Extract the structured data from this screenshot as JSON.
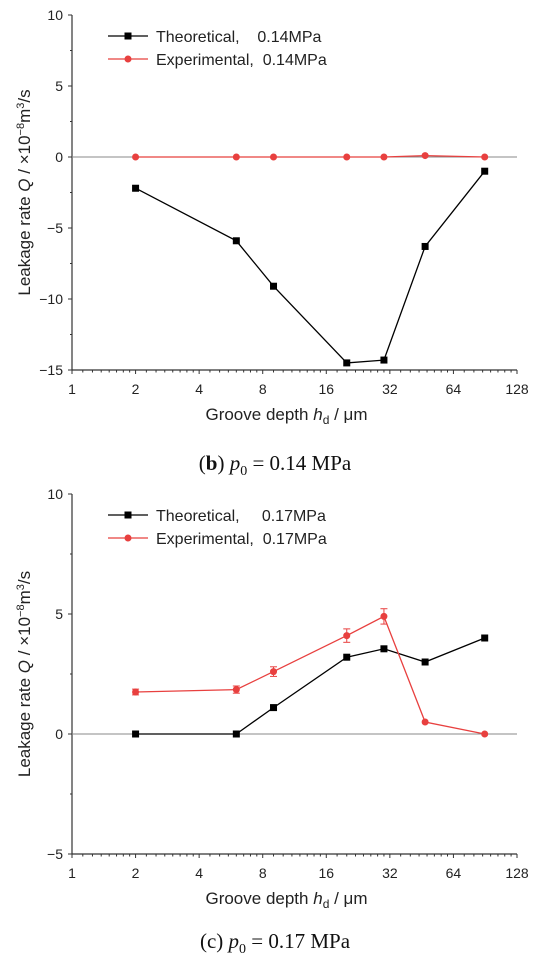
{
  "chart_data": [
    {
      "type": "line",
      "caption": {
        "prefix": "(",
        "letter": "b",
        "suffix": ") ",
        "var": "p",
        "sub": "0",
        "value": " = 0.14 MPa"
      },
      "xlabel": "Groove depth",
      "xlabel_var": "h",
      "xlabel_sub": "d",
      "xlabel_unit": " / μm",
      "ylabel": "Leakage rate",
      "ylabel_var": "Q",
      "ylabel_unit": "/ ×10",
      "ylabel_exp": "−8",
      "ylabel_unit2": "m",
      "ylabel_exp2": "3",
      "ylabel_unit3": "/s",
      "x_scale": "log2",
      "xlim": [
        1,
        128
      ],
      "ylim": [
        -15,
        10
      ],
      "x_ticks": [
        "1",
        "2",
        "4",
        "8",
        "16",
        "32",
        "64",
        "128"
      ],
      "y_ticks": [
        "10",
        "5",
        "0",
        "-5",
        "-10",
        "-15"
      ],
      "legend_position": "top-left",
      "series": [
        {
          "name": "Theoretical,    0.14MPa",
          "color": "#000000",
          "marker": "square",
          "x": [
            2,
            6,
            9,
            20,
            30,
            47,
            90
          ],
          "y": [
            -2.2,
            -5.9,
            -9.1,
            -14.5,
            -14.3,
            -6.3,
            -1.0
          ]
        },
        {
          "name": "Experimental,  0.14MPa",
          "color": "#e8403f",
          "marker": "circle",
          "x": [
            2,
            6,
            9,
            20,
            30,
            47,
            90
          ],
          "y": [
            0,
            0,
            0,
            0,
            0,
            0.1,
            0
          ]
        }
      ]
    },
    {
      "type": "line",
      "caption": {
        "prefix": "(",
        "letter": "c",
        "suffix": ") ",
        "var": "p",
        "sub": "0",
        "value": " = 0.17 MPa"
      },
      "xlabel": "Groove depth",
      "xlabel_var": "h",
      "xlabel_sub": "d",
      "xlabel_unit": " / μm",
      "ylabel": "Leakage rate",
      "ylabel_var": "Q",
      "ylabel_unit": "/ ×10",
      "ylabel_exp": "−8",
      "ylabel_unit2": "m",
      "ylabel_exp2": "3",
      "ylabel_unit3": "/s",
      "x_scale": "log2",
      "xlim": [
        1,
        128
      ],
      "ylim": [
        -5,
        10
      ],
      "x_ticks": [
        "1",
        "2",
        "4",
        "8",
        "16",
        "32",
        "64",
        "128"
      ],
      "y_ticks": [
        "10",
        "5",
        "0",
        "-5"
      ],
      "legend_position": "top-left",
      "series": [
        {
          "name": "Theoretical,     0.17MPa",
          "color": "#000000",
          "marker": "square",
          "x": [
            2,
            6,
            9,
            20,
            30,
            47,
            90
          ],
          "y": [
            0,
            0,
            1.1,
            3.2,
            3.55,
            3.0,
            4.0
          ]
        },
        {
          "name": "Experimental,  0.17MPa",
          "color": "#e8403f",
          "marker": "circle",
          "x": [
            2,
            6,
            9,
            20,
            30,
            47,
            90
          ],
          "y": [
            1.75,
            1.85,
            2.6,
            4.1,
            4.9,
            0.5,
            0
          ],
          "error": [
            0.12,
            0.15,
            0.2,
            0.28,
            0.32,
            0,
            0
          ]
        }
      ]
    }
  ]
}
